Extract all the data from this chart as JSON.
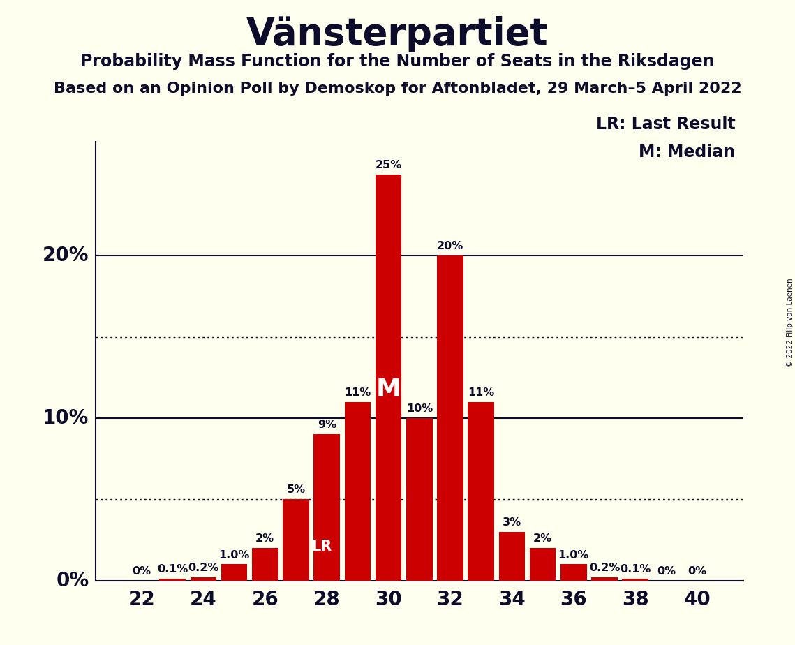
{
  "title": "Vänsterpartiet",
  "subtitle1": "Probability Mass Function for the Number of Seats in the Riksdagen",
  "subtitle2": "Based on an Opinion Poll by Demoskop for Aftonbladet, 29 March–5 April 2022",
  "copyright": "© 2022 Filip van Laenen",
  "legend_lr": "LR: Last Result",
  "legend_m": "M: Median",
  "seats": [
    22,
    23,
    24,
    25,
    26,
    27,
    28,
    29,
    30,
    31,
    32,
    33,
    34,
    35,
    36,
    37,
    38,
    39,
    40
  ],
  "probs": [
    0.0,
    0.1,
    0.2,
    1.0,
    2.0,
    5.0,
    9.0,
    11.0,
    25.0,
    10.0,
    20.0,
    11.0,
    3.0,
    2.0,
    1.0,
    0.2,
    0.1,
    0.0,
    0.0
  ],
  "labels": [
    "0%",
    "0.1%",
    "0.2%",
    "1.0%",
    "2%",
    "5%",
    "9%",
    "11%",
    "25%",
    "10%",
    "20%",
    "11%",
    "3%",
    "2%",
    "1.0%",
    "0.2%",
    "0.1%",
    "0%",
    "0%"
  ],
  "bar_color": "#cc0000",
  "bg_color": "#fffff0",
  "text_color": "#0d0d2b",
  "lr_seat": 27,
  "median_seat": 30,
  "ylim": [
    0,
    27
  ],
  "solid_gridlines": [
    10.0,
    20.0
  ],
  "dotted_gridlines": [
    5.0,
    15.0
  ],
  "xlabel_ticks": [
    22,
    24,
    26,
    28,
    30,
    32,
    34,
    36,
    38,
    40
  ],
  "ylabel_ticks": [
    0,
    10,
    20
  ],
  "ylabel_labels": [
    "0%",
    "10%",
    "20%"
  ]
}
